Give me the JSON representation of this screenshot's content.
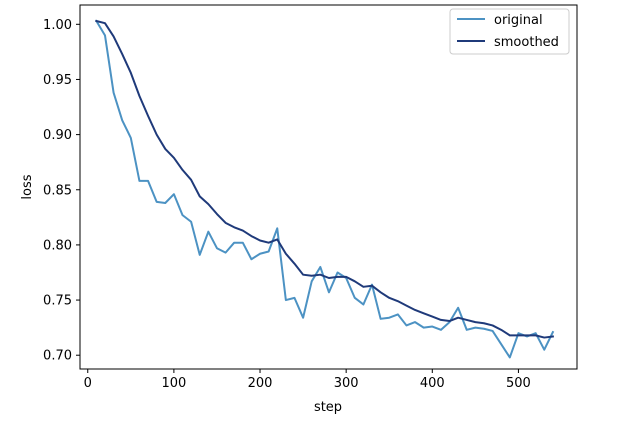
{
  "chart_data": {
    "type": "line",
    "title": "",
    "xlabel": "step",
    "ylabel": "loss",
    "xlim": [
      -9,
      568
    ],
    "ylim": [
      0.6875,
      1.0175
    ],
    "xticks": [
      0,
      100,
      200,
      300,
      400,
      500
    ],
    "yticks": [
      0.7,
      0.75,
      0.8,
      0.85,
      0.9,
      0.95,
      1.0
    ],
    "grid": false,
    "legend_position": "upper-right",
    "x": [
      10,
      20,
      30,
      40,
      50,
      60,
      70,
      80,
      90,
      100,
      110,
      120,
      130,
      140,
      150,
      160,
      170,
      180,
      190,
      200,
      210,
      220,
      230,
      240,
      250,
      260,
      270,
      280,
      290,
      300,
      310,
      320,
      330,
      340,
      350,
      360,
      370,
      380,
      390,
      400,
      410,
      420,
      430,
      440,
      450,
      460,
      470,
      480,
      490,
      500,
      510,
      520,
      530,
      540
    ],
    "series": [
      {
        "name": "original",
        "color": "#4c92c3",
        "values": [
          1.003,
          0.99,
          0.938,
          0.913,
          0.897,
          0.858,
          0.858,
          0.839,
          0.838,
          0.846,
          0.827,
          0.821,
          0.791,
          0.812,
          0.797,
          0.793,
          0.802,
          0.802,
          0.787,
          0.792,
          0.794,
          0.815,
          0.75,
          0.752,
          0.734,
          0.767,
          0.78,
          0.757,
          0.775,
          0.77,
          0.752,
          0.746,
          0.764,
          0.733,
          0.734,
          0.737,
          0.727,
          0.73,
          0.725,
          0.726,
          0.723,
          0.73,
          0.743,
          0.723,
          0.725,
          0.724,
          0.722,
          0.71,
          0.698,
          0.72,
          0.717,
          0.72,
          0.705,
          0.721
        ]
      },
      {
        "name": "smoothed",
        "color": "#1f3a7a",
        "values": [
          1.003,
          1.001,
          0.989,
          0.973,
          0.956,
          0.935,
          0.917,
          0.9,
          0.887,
          0.879,
          0.868,
          0.859,
          0.844,
          0.837,
          0.828,
          0.82,
          0.816,
          0.813,
          0.808,
          0.804,
          0.802,
          0.805,
          0.792,
          0.783,
          0.773,
          0.772,
          0.773,
          0.77,
          0.771,
          0.771,
          0.767,
          0.762,
          0.763,
          0.757,
          0.752,
          0.749,
          0.745,
          0.741,
          0.738,
          0.735,
          0.732,
          0.731,
          0.734,
          0.732,
          0.73,
          0.729,
          0.727,
          0.723,
          0.718,
          0.718,
          0.718,
          0.718,
          0.716,
          0.717
        ]
      }
    ]
  }
}
